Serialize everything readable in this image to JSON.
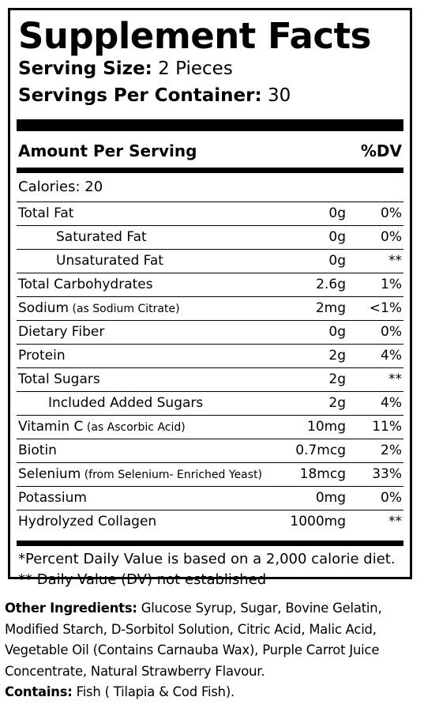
{
  "panel": {
    "title": "Supplement Facts",
    "serving_size_label": "Serving Size:",
    "serving_size_value": " 2 Pieces",
    "servings_label": "Servings Per Container:",
    "servings_value": " 30",
    "amount_header": "Amount Per Serving",
    "dv_header": "%DV",
    "calories": "Calories: 20",
    "rows": [
      {
        "name": "Total Fat",
        "note": "",
        "amount": "0g",
        "dv": "0%"
      },
      {
        "name": "Saturated Fat",
        "note": "",
        "amount": "0g",
        "dv": "0%"
      },
      {
        "name": "Unsaturated Fat",
        "note": "",
        "amount": "0g",
        "dv": "**"
      },
      {
        "name": "Total Carbohydrates",
        "note": "",
        "amount": "2.6g",
        "dv": "1%"
      },
      {
        "name": "Sodium",
        "note": " (as Sodium Citrate)",
        "amount": "2mg",
        "dv": "<1%"
      },
      {
        "name": "Dietary Fiber",
        "note": "",
        "amount": "0g",
        "dv": "0%"
      },
      {
        "name": "Protein",
        "note": "",
        "amount": "2g",
        "dv": "4%"
      },
      {
        "name": "Total Sugars",
        "note": "",
        "amount": "2g",
        "dv": "**"
      },
      {
        "name": "Included Added Sugars",
        "note": "",
        "amount": "2g",
        "dv": "4%"
      },
      {
        "name": "Vitamin C",
        "note": " (as Ascorbic Acid)",
        "amount": "10mg",
        "dv": "11%"
      },
      {
        "name": "Biotin",
        "note": "",
        "amount": "0.7mcg",
        "dv": "2%"
      },
      {
        "name": "Selenium",
        "note": " (from Selenium- Enriched Yeast)",
        "amount": "18mcg",
        "dv": "33%"
      },
      {
        "name": "Potassium",
        "note": "",
        "amount": "0mg",
        "dv": "0%"
      },
      {
        "name": "Hydrolyzed Collagen",
        "note": "",
        "amount": "1000mg",
        "dv": "**"
      }
    ],
    "footnote_1": "*Percent Daily Value is based on a 2,000 calorie diet.",
    "footnote_2": "** Daily Value (DV) not established"
  },
  "ingredients": {
    "label": "Other Ingredients:",
    "line1": " Glucose Syrup, Sugar, Bovine Gelatin,",
    "line2": "Modified Starch, D-Sorbitol Solution, Citric Acid, Malic Acid,",
    "line3": "Vegetable Oil (Contains Carnauba Wax), Purple Carrot Juice",
    "line4": "Concentrate, Natural Strawberry Flavour.",
    "contains_label": "Contains:",
    "contains_value": " Fish ( Tilapia & Cod Fish)."
  }
}
